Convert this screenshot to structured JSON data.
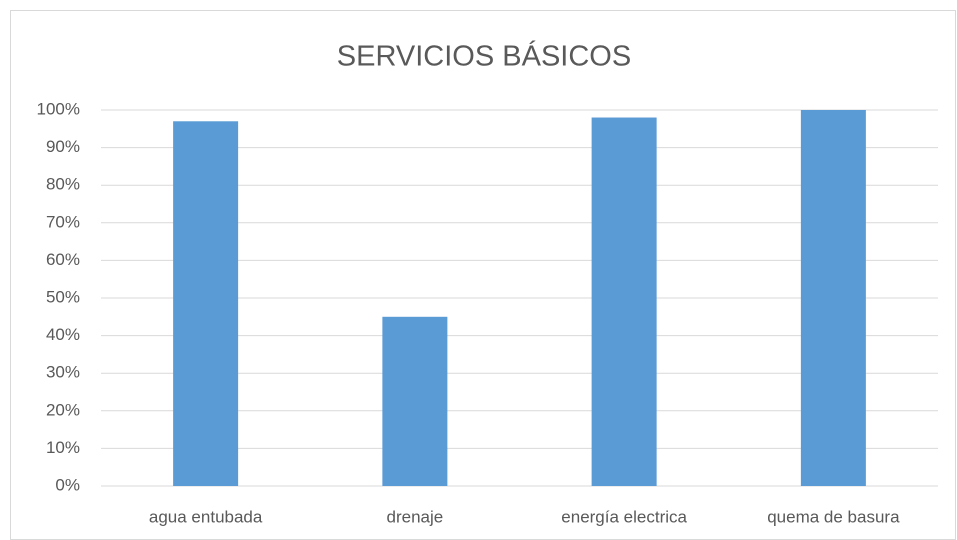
{
  "chart_data": {
    "type": "bar",
    "title": "SERVICIOS BÁSICOS",
    "categories": [
      "agua entubada",
      "drenaje",
      "energía electrica",
      "quema de basura"
    ],
    "values": [
      97,
      45,
      98,
      100
    ],
    "color": "#5b9bd5",
    "ylim": [
      0,
      100
    ],
    "yticks": [
      {
        "value": 0,
        "label": "0%"
      },
      {
        "value": 10,
        "label": "10%"
      },
      {
        "value": 20,
        "label": "20%"
      },
      {
        "value": 30,
        "label": "30%"
      },
      {
        "value": 40,
        "label": "40%"
      },
      {
        "value": 50,
        "label": "50%"
      },
      {
        "value": 60,
        "label": "60%"
      },
      {
        "value": 70,
        "label": "70%"
      },
      {
        "value": 80,
        "label": "80%"
      },
      {
        "value": 90,
        "label": "90%"
      },
      {
        "value": 100,
        "label": "100%"
      }
    ],
    "grid": true
  }
}
